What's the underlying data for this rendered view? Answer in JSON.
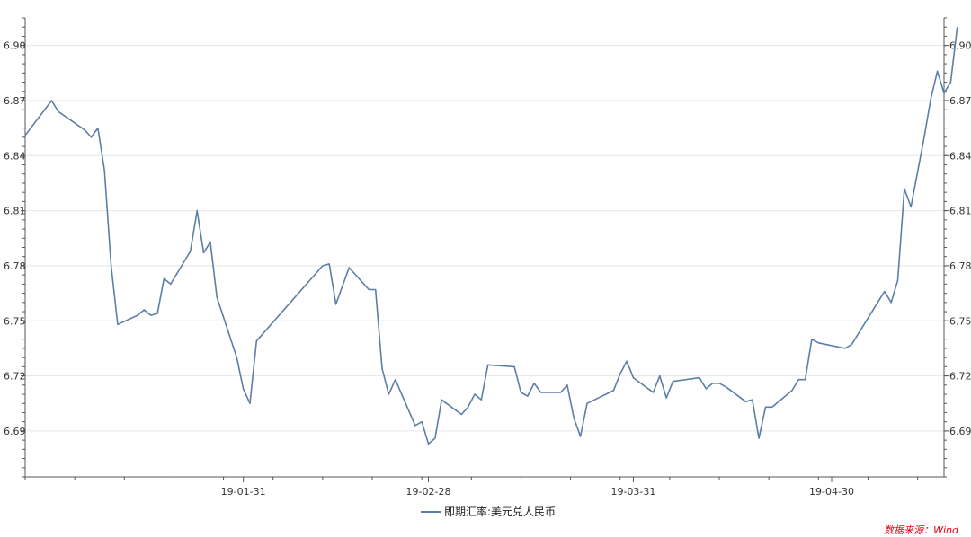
{
  "chart_data": {
    "type": "line",
    "title": "",
    "xlabel": "",
    "ylabel": "",
    "ylim": [
      6.665,
      6.915
    ],
    "yticks": [
      6.69,
      6.72,
      6.75,
      6.78,
      6.81,
      6.84,
      6.87,
      6.9
    ],
    "ytick_labels": [
      "6.69",
      "6.72",
      "6.75",
      "6.78",
      "6.81",
      "6.84",
      "6.87",
      "6.90"
    ],
    "xlim": [
      "2018-12-29",
      "2019-05-17"
    ],
    "xticks": [
      "2019-01-31",
      "2019-02-28",
      "2019-03-31",
      "2019-04-30"
    ],
    "xtick_labels": [
      "19-01-31",
      "19-02-28",
      "19-03-31",
      "19-04-30"
    ],
    "grid": true,
    "legend_position": "bottom",
    "series": [
      {
        "name": "即期汇率:美元兑人民币",
        "color": "#5b7fa6",
        "points": [
          [
            "2018-12-29",
            6.851
          ],
          [
            "2019-01-02",
            6.87
          ],
          [
            "2019-01-03",
            6.864
          ],
          [
            "2019-01-07",
            6.854
          ],
          [
            "2019-01-08",
            6.85
          ],
          [
            "2019-01-09",
            6.855
          ],
          [
            "2019-01-10",
            6.832
          ],
          [
            "2019-01-11",
            6.78
          ],
          [
            "2019-01-12",
            6.748
          ],
          [
            "2019-01-15",
            6.753
          ],
          [
            "2019-01-16",
            6.756
          ],
          [
            "2019-01-17",
            6.753
          ],
          [
            "2019-01-18",
            6.754
          ],
          [
            "2019-01-19",
            6.773
          ],
          [
            "2019-01-20",
            6.77
          ],
          [
            "2019-01-23",
            6.788
          ],
          [
            "2019-01-24",
            6.81
          ],
          [
            "2019-01-25",
            6.787
          ],
          [
            "2019-01-26",
            6.793
          ],
          [
            "2019-01-27",
            6.763
          ],
          [
            "2019-01-30",
            6.73
          ],
          [
            "2019-01-31",
            6.713
          ],
          [
            "2019-02-01",
            6.705
          ],
          [
            "2019-02-02",
            6.739
          ],
          [
            "2019-02-12",
            6.78
          ],
          [
            "2019-02-13",
            6.781
          ],
          [
            "2019-02-14",
            6.759
          ],
          [
            "2019-02-16",
            6.779
          ],
          [
            "2019-02-19",
            6.767
          ],
          [
            "2019-02-20",
            6.767
          ],
          [
            "2019-02-21",
            6.724
          ],
          [
            "2019-02-22",
            6.71
          ],
          [
            "2019-02-23",
            6.718
          ],
          [
            "2019-02-26",
            6.693
          ],
          [
            "2019-02-27",
            6.695
          ],
          [
            "2019-02-28",
            6.683
          ],
          [
            "2019-03-01",
            6.686
          ],
          [
            "2019-03-02",
            6.707
          ],
          [
            "2019-03-05",
            6.699
          ],
          [
            "2019-03-06",
            6.703
          ],
          [
            "2019-03-07",
            6.71
          ],
          [
            "2019-03-08",
            6.707
          ],
          [
            "2019-03-09",
            6.726
          ],
          [
            "2019-03-13",
            6.725
          ],
          [
            "2019-03-14",
            6.711
          ],
          [
            "2019-03-15",
            6.709
          ],
          [
            "2019-03-16",
            6.716
          ],
          [
            "2019-03-17",
            6.711
          ],
          [
            "2019-03-20",
            6.711
          ],
          [
            "2019-03-21",
            6.715
          ],
          [
            "2019-03-22",
            6.697
          ],
          [
            "2019-03-23",
            6.687
          ],
          [
            "2019-03-24",
            6.705
          ],
          [
            "2019-03-28",
            6.712
          ],
          [
            "2019-03-29",
            6.721
          ],
          [
            "2019-03-30",
            6.728
          ],
          [
            "2019-03-31",
            6.719
          ],
          [
            "2019-04-03",
            6.711
          ],
          [
            "2019-04-04",
            6.72
          ],
          [
            "2019-04-05",
            6.708
          ],
          [
            "2019-04-06",
            6.717
          ],
          [
            "2019-04-10",
            6.719
          ],
          [
            "2019-04-11",
            6.713
          ],
          [
            "2019-04-12",
            6.716
          ],
          [
            "2019-04-13",
            6.716
          ],
          [
            "2019-04-14",
            6.714
          ],
          [
            "2019-04-17",
            6.706
          ],
          [
            "2019-04-18",
            6.707
          ],
          [
            "2019-04-19",
            6.686
          ],
          [
            "2019-04-20",
            6.703
          ],
          [
            "2019-04-21",
            6.703
          ],
          [
            "2019-04-24",
            6.712
          ],
          [
            "2019-04-25",
            6.718
          ],
          [
            "2019-04-26",
            6.718
          ],
          [
            "2019-04-27",
            6.74
          ],
          [
            "2019-04-28",
            6.738
          ],
          [
            "2019-05-02",
            6.735
          ],
          [
            "2019-05-03",
            6.737
          ],
          [
            "2019-05-08",
            6.766
          ],
          [
            "2019-05-09",
            6.76
          ],
          [
            "2019-05-10",
            6.772
          ],
          [
            "2019-05-11",
            6.822
          ],
          [
            "2019-05-12",
            6.812
          ],
          [
            "2019-05-14",
            6.85
          ],
          [
            "2019-05-15",
            6.871
          ],
          [
            "2019-05-16",
            6.886
          ],
          [
            "2019-05-17",
            6.874
          ],
          [
            "2019-05-18",
            6.88
          ],
          [
            "2019-05-19",
            6.91
          ]
        ]
      }
    ]
  },
  "source_text": "数据来源：Wind"
}
